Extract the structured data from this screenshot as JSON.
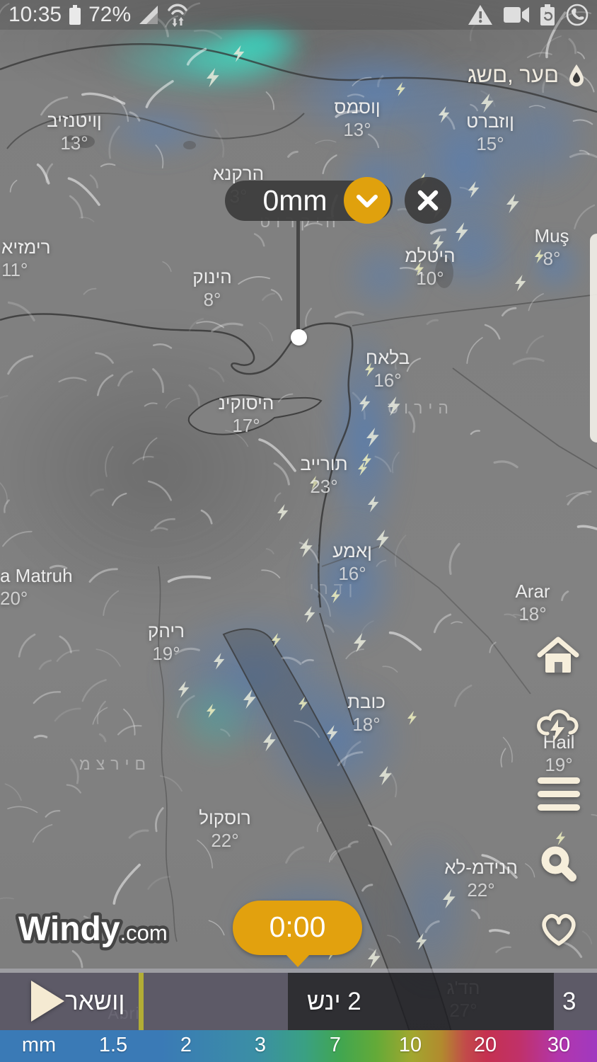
{
  "status": {
    "time": "10:35",
    "battery": "72%"
  },
  "header": {
    "layer_label": "גשם, רעם"
  },
  "popup": {
    "value": "0mm"
  },
  "map": {
    "cities": [
      {
        "name": "ביזנטיון",
        "temp": "13°"
      },
      {
        "name": "סמסון",
        "temp": "13°"
      },
      {
        "name": "טרבזון",
        "temp": "15°"
      },
      {
        "name": "אנקרה",
        "temp": "3°"
      },
      {
        "name": "איזמיר",
        "temp": "11°"
      },
      {
        "name": "קוניה",
        "temp": "8°"
      },
      {
        "name": "מלטיה",
        "temp": "10°"
      },
      {
        "name": "Muş",
        "temp": "8°"
      },
      {
        "name": "ניקוסיה",
        "temp": "17°"
      },
      {
        "name": "חאלב",
        "temp": "16°"
      },
      {
        "name": "ביירות",
        "temp": "23°"
      },
      {
        "name": "עמאן",
        "temp": "16°"
      },
      {
        "name": "a Matruh",
        "temp": "20°"
      },
      {
        "name": "Arar",
        "temp": "18°"
      },
      {
        "name": "קהיר",
        "temp": "19°"
      },
      {
        "name": "Hail",
        "temp": "19°"
      },
      {
        "name": "תבוכ",
        "temp": "18°"
      },
      {
        "name": "לוקסור",
        "temp": "22°"
      },
      {
        "name": "אל-מדינה",
        "temp": "22°"
      },
      {
        "name": "ג'דה",
        "temp": "27°"
      }
    ],
    "regions": [
      {
        "name": "טורקיה"
      },
      {
        "name": "סוריה"
      },
      {
        "name": "ירדן"
      },
      {
        "name": "מצרים"
      },
      {
        "name": "Abri"
      }
    ]
  },
  "logo": {
    "brand": "Windy",
    "tld": ".com"
  },
  "timeline": {
    "bubble_time": "0:00",
    "day1": "ראשון",
    "day2": "שני 2",
    "day3": "3"
  },
  "legend": {
    "unit": "mm",
    "ticks": [
      "1.5",
      "2",
      "3",
      "7",
      "10",
      "20",
      "30"
    ]
  },
  "colors": {
    "accent_yellow": "#e2a10e",
    "icon_cream": "#f6eedb",
    "marker_olive": "#b2ad35",
    "popup_dark": "#3c3c3c",
    "timeline_dark": "#1c1c20",
    "timeline_light": "#504c5e"
  }
}
